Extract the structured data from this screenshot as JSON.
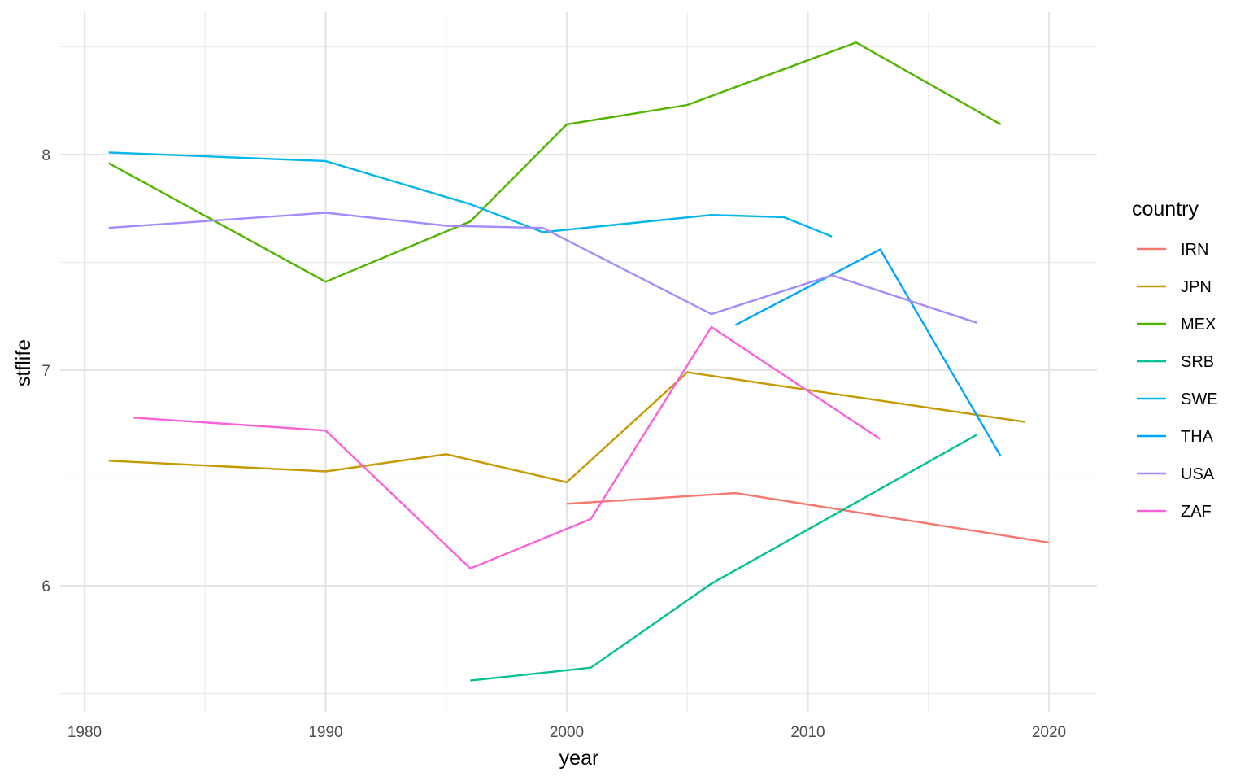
{
  "chart_data": {
    "type": "line",
    "title": "",
    "xlabel": "year",
    "ylabel": "stflife",
    "xlim": [
      1979,
      2022
    ],
    "ylim": [
      5.5,
      8.5
    ],
    "x_ticks": [
      1980,
      1990,
      2000,
      2010,
      2020
    ],
    "y_ticks": [
      6,
      7,
      8
    ],
    "grid": true,
    "legend": {
      "title": "country",
      "position": "right"
    },
    "series": [
      {
        "name": "IRN",
        "color": "#F8766D",
        "x": [
          2000,
          2007,
          2020
        ],
        "y": [
          6.38,
          6.43,
          6.2
        ]
      },
      {
        "name": "JPN",
        "color": "#C49A00",
        "x": [
          1981,
          1990,
          1995,
          2000,
          2005,
          2019
        ],
        "y": [
          6.58,
          6.53,
          6.61,
          6.48,
          6.99,
          6.76
        ]
      },
      {
        "name": "MEX",
        "color": "#53B400",
        "x": [
          1981,
          1990,
          1996,
          2000,
          2005,
          2012,
          2018
        ],
        "y": [
          7.96,
          7.41,
          7.69,
          8.14,
          8.23,
          8.52,
          8.14
        ]
      },
      {
        "name": "SRB",
        "color": "#00C094",
        "x": [
          1996,
          2001,
          2006,
          2017
        ],
        "y": [
          5.56,
          5.62,
          6.01,
          6.7
        ]
      },
      {
        "name": "SWE",
        "color": "#00B6EB",
        "x": [
          1981,
          1990,
          1996,
          1999,
          2006,
          2009,
          2011
        ],
        "y": [
          8.01,
          7.97,
          7.77,
          7.64,
          7.72,
          7.71,
          7.62
        ]
      },
      {
        "name": "THA",
        "color": "#06A4FF",
        "x": [
          2007,
          2013,
          2018
        ],
        "y": [
          7.21,
          7.56,
          6.6
        ]
      },
      {
        "name": "USA",
        "color": "#A58AFF",
        "x": [
          1981,
          1990,
          1995,
          1999,
          2006,
          2011,
          2017
        ],
        "y": [
          7.66,
          7.73,
          7.67,
          7.66,
          7.26,
          7.44,
          7.22
        ]
      },
      {
        "name": "ZAF",
        "color": "#FB61D7",
        "x": [
          1982,
          1990,
          1996,
          2001,
          2006,
          2013
        ],
        "y": [
          6.78,
          6.72,
          6.08,
          6.31,
          7.2,
          6.68
        ]
      }
    ]
  }
}
